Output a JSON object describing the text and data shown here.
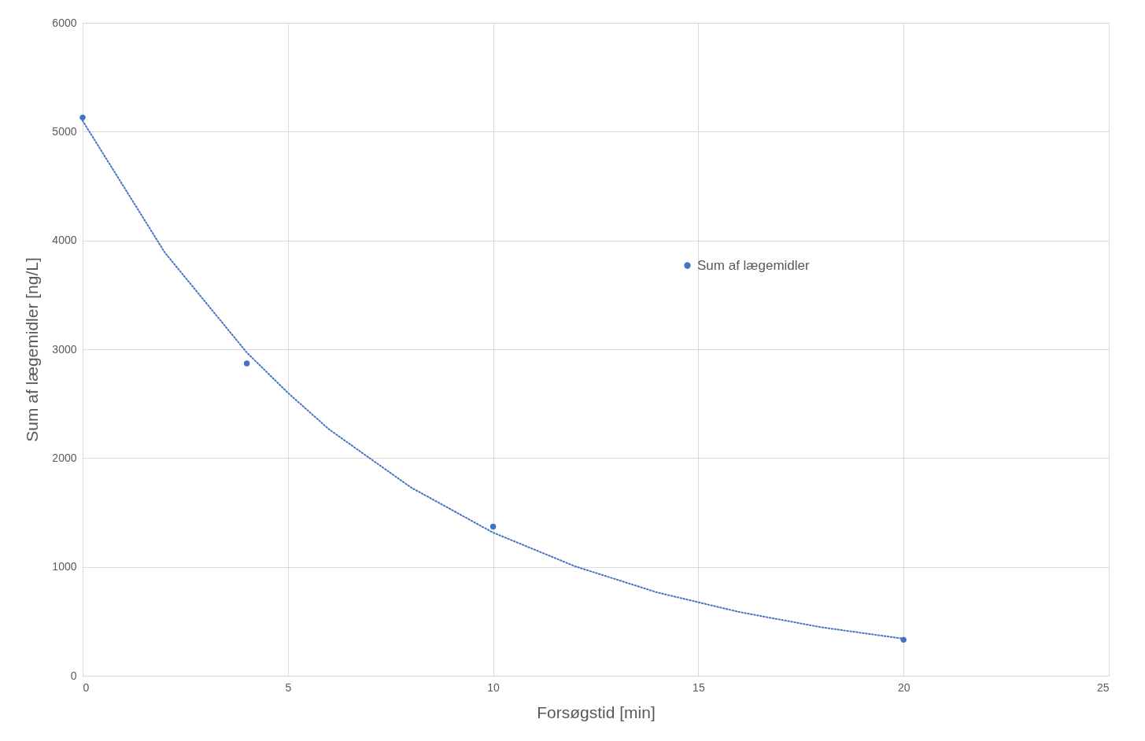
{
  "chart_data": {
    "type": "scatter",
    "xlabel": "Forsøgstid [min]",
    "ylabel": "Sum af lægemidler [ng/L]",
    "series": [
      {
        "name": "Sum af lægemidler",
        "color": "#4472c4",
        "marker": "circle",
        "x": [
          0,
          4,
          10,
          20
        ],
        "values": [
          5130,
          2870,
          1370,
          330
        ]
      },
      {
        "color": "#4472c4",
        "type": "line",
        "line_style": "dotted",
        "marker": "none",
        "x": [
          0,
          2,
          4,
          5,
          6,
          8,
          10,
          12,
          14,
          16,
          18,
          20
        ],
        "values": [
          5100,
          3890,
          2970,
          2600,
          2265,
          1730,
          1315,
          1005,
          765,
          585,
          445,
          340
        ]
      }
    ],
    "xlim": [
      0,
      25
    ],
    "xticks": [
      0,
      5,
      10,
      15,
      20,
      25
    ],
    "ylim": [
      0,
      6000
    ],
    "yticks": [
      0,
      1000,
      2000,
      3000,
      4000,
      5000,
      6000
    ],
    "grid": true,
    "legend": "right"
  }
}
